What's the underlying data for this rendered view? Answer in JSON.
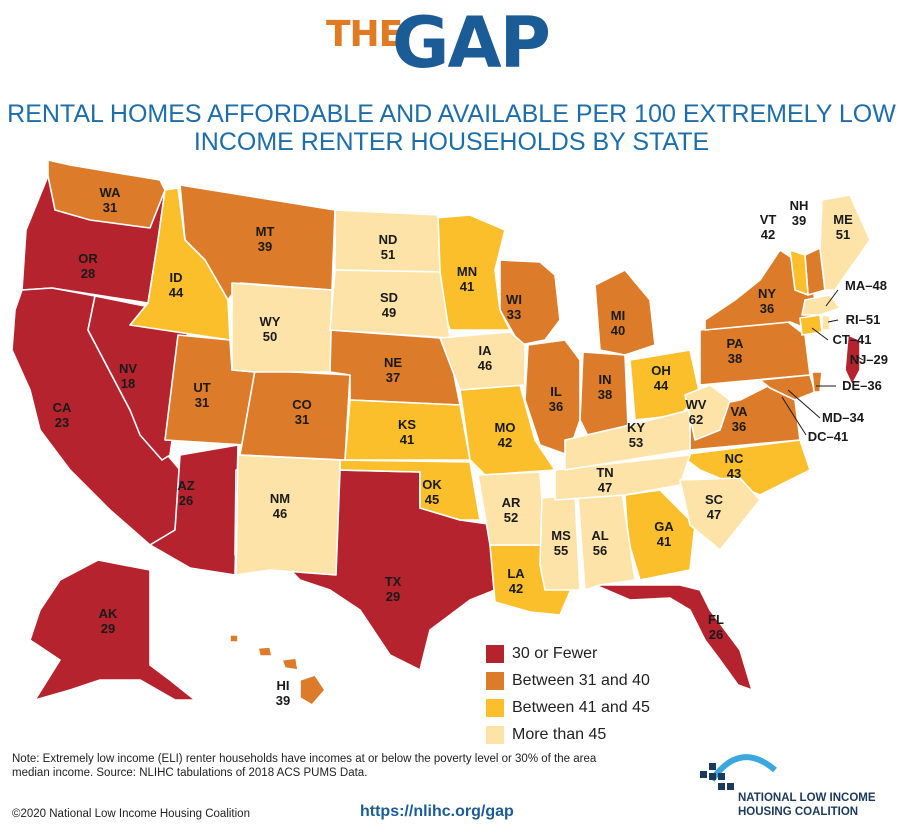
{
  "header": {
    "logo_the": "THE",
    "logo_gap": "GAP",
    "subtitle_line1": "RENTAL HOMES AFFORDABLE AND AVAILABLE PER 100 EXTREMELY LOW",
    "subtitle_line2": "INCOME RENTER HOUSEHOLDS BY STATE"
  },
  "colors": {
    "30_or_fewer": "#b5232e",
    "31_to_40": "#dc7c2a",
    "41_to_45": "#fbbf2c",
    "more_than_45": "#fde3a7"
  },
  "legend": [
    {
      "label": "30 or Fewer",
      "color": "#b5232e"
    },
    {
      "label": "Between 31 and 40",
      "color": "#dc7c2a"
    },
    {
      "label": "Between 41 and 45",
      "color": "#fbbf2c"
    },
    {
      "label": "More than 45",
      "color": "#fde3a7"
    }
  ],
  "states": {
    "WA": {
      "abbr": "WA",
      "value": "31"
    },
    "OR": {
      "abbr": "OR",
      "value": "28"
    },
    "CA": {
      "abbr": "CA",
      "value": "23"
    },
    "NV": {
      "abbr": "NV",
      "value": "18"
    },
    "ID": {
      "abbr": "ID",
      "value": "44"
    },
    "MT": {
      "abbr": "MT",
      "value": "39"
    },
    "WY": {
      "abbr": "WY",
      "value": "50"
    },
    "UT": {
      "abbr": "UT",
      "value": "31"
    },
    "AZ": {
      "abbr": "AZ",
      "value": "26"
    },
    "CO": {
      "abbr": "CO",
      "value": "31"
    },
    "NM": {
      "abbr": "NM",
      "value": "46"
    },
    "ND": {
      "abbr": "ND",
      "value": "51"
    },
    "SD": {
      "abbr": "SD",
      "value": "49"
    },
    "NE": {
      "abbr": "NE",
      "value": "37"
    },
    "KS": {
      "abbr": "KS",
      "value": "41"
    },
    "OK": {
      "abbr": "OK",
      "value": "45"
    },
    "TX": {
      "abbr": "TX",
      "value": "29"
    },
    "MN": {
      "abbr": "MN",
      "value": "41"
    },
    "IA": {
      "abbr": "IA",
      "value": "46"
    },
    "MO": {
      "abbr": "MO",
      "value": "42"
    },
    "AR": {
      "abbr": "AR",
      "value": "52"
    },
    "LA": {
      "abbr": "LA",
      "value": "42"
    },
    "WI": {
      "abbr": "WI",
      "value": "33"
    },
    "IL": {
      "abbr": "IL",
      "value": "36"
    },
    "MS": {
      "abbr": "MS",
      "value": "55"
    },
    "MI": {
      "abbr": "MI",
      "value": "40"
    },
    "IN": {
      "abbr": "IN",
      "value": "38"
    },
    "OH": {
      "abbr": "OH",
      "value": "44"
    },
    "KY": {
      "abbr": "KY",
      "value": "53"
    },
    "TN": {
      "abbr": "TN",
      "value": "47"
    },
    "AL": {
      "abbr": "AL",
      "value": "56"
    },
    "GA": {
      "abbr": "GA",
      "value": "41"
    },
    "FL": {
      "abbr": "FL",
      "value": "26"
    },
    "SC": {
      "abbr": "SC",
      "value": "47"
    },
    "NC": {
      "abbr": "NC",
      "value": "43"
    },
    "VA": {
      "abbr": "VA",
      "value": "36"
    },
    "WV": {
      "abbr": "WV",
      "value": "62"
    },
    "PA": {
      "abbr": "PA",
      "value": "38"
    },
    "NY": {
      "abbr": "NY",
      "value": "36"
    },
    "VT": {
      "abbr": "VT",
      "value": "42"
    },
    "NH": {
      "abbr": "NH",
      "value": "39"
    },
    "ME": {
      "abbr": "ME",
      "value": "51"
    },
    "AK": {
      "abbr": "AK",
      "value": "29"
    },
    "HI": {
      "abbr": "HI",
      "value": "39"
    }
  },
  "callouts": {
    "MA": "MA–48",
    "RI": "RI–51",
    "CT": "CT–41",
    "NJ": "NJ–29",
    "DE": "DE–36",
    "MD": "MD–34",
    "DC": "DC–41"
  },
  "footer": {
    "note": "Note: Extremely low income (ELI) renter households have incomes at or below the poverty level or 30% of the area median income. Source: NLIHC tabulations of 2018 ACS PUMS Data.",
    "copyright": "©2020 National Low Income Housing Coalition",
    "url": "https://nlihc.org/gap",
    "org_line1": "NATIONAL LOW INCOME",
    "org_line2": "HOUSING COALITION"
  }
}
